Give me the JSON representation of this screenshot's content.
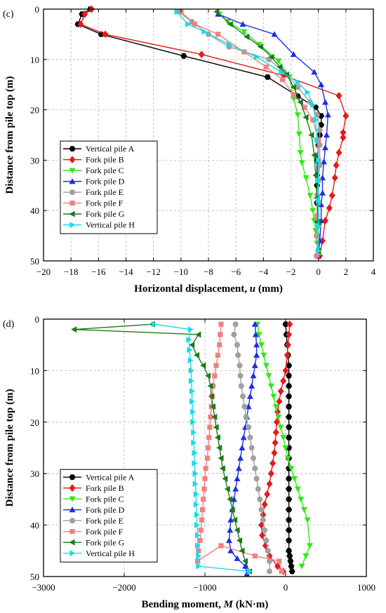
{
  "chart_data": [
    {
      "type": "line",
      "panel_label": "(c)",
      "xlabel_main": "Horizontal displacement, ",
      "xlabel_var": "u",
      "xlabel_unit": " (mm)",
      "ylabel": "Distance from pile top (m)",
      "xlim": [
        -20,
        4
      ],
      "ylim": [
        0,
        50
      ],
      "y_inverted": true,
      "x_axis_position": "bottom",
      "grid": true,
      "legend_position": "lower-left",
      "xticks": [
        -20,
        -18,
        -16,
        -14,
        -12,
        -10,
        -8,
        -6,
        -4,
        -2,
        0,
        2,
        4
      ],
      "yticks": [
        0,
        10,
        20,
        30,
        40,
        50
      ],
      "series": [
        {
          "name": "Vertical pile A",
          "color": "#000000",
          "marker": "hexagon",
          "x": [
            -16.6,
            -17.2,
            -17.5,
            -15.8,
            -9.8,
            -3.7,
            -1.5,
            -0.2,
            0.2,
            0.2,
            0.1,
            0.0,
            -0.1,
            -0.1,
            -0.1,
            -0.1,
            -0.1,
            -0.1,
            -0.1
          ],
          "y": [
            0,
            1,
            3,
            5,
            9.3,
            13.5,
            17.3,
            19.5,
            21.2,
            23,
            25,
            27,
            30,
            33,
            35,
            38.5,
            42,
            45,
            49
          ]
        },
        {
          "name": "Fork pile B",
          "color": "#e41a1c",
          "marker": "diamond",
          "x": [
            -16.5,
            -17.0,
            -17.3,
            -15.5,
            -8.5,
            -2.5,
            1.5,
            2.0,
            1.8,
            1.8,
            1.5,
            1.3,
            1.2,
            1.0,
            0.8,
            0.5,
            0.3,
            0.1
          ],
          "y": [
            0,
            1,
            3,
            5,
            9,
            13.2,
            17.2,
            21.2,
            24.5,
            25.5,
            28.5,
            31,
            33.5,
            37,
            39.5,
            42,
            46,
            49
          ]
        },
        {
          "name": "Fork pile C",
          "color": "#33e61a",
          "marker": "triangle-down",
          "x": [
            -7.2,
            -6.6,
            -5.4,
            -4.3,
            -2.9,
            -2.1,
            -1.8,
            -1.5,
            -1.4,
            -1.3,
            -1.2,
            -0.9,
            -0.6,
            -0.4,
            -0.3,
            -0.2,
            -0.1,
            0.0
          ],
          "y": [
            1,
            2.5,
            4.5,
            7,
            10.3,
            13.5,
            17.8,
            21,
            24.8,
            28.5,
            30.5,
            33.5,
            37,
            40,
            42,
            44,
            46.5,
            49
          ]
        },
        {
          "name": "Fork pile D",
          "color": "#1a2ee6",
          "marker": "triangle-up",
          "x": [
            -7.3,
            -5.5,
            -3.2,
            -1.8,
            -0.3,
            0.2,
            0.5,
            0.7,
            0.6,
            0.5,
            0.4,
            0.3,
            0.3,
            0.2,
            0.2,
            0.1,
            0.0
          ],
          "y": [
            1,
            3,
            5,
            9,
            12.5,
            15,
            18.5,
            21,
            25,
            27.5,
            30.3,
            33.5,
            36.5,
            38.8,
            42,
            46,
            49
          ]
        },
        {
          "name": "Fork pile E",
          "color": "#a0a0a0",
          "marker": "circle",
          "x": [
            -10.2,
            -9.2,
            -8.0,
            -6.5,
            -3.6,
            -2.5,
            -1.5,
            -0.6,
            -0.1,
            0.1,
            0.1,
            0.1,
            0.0,
            0.0,
            0.0,
            0.0
          ],
          "y": [
            0.5,
            2.5,
            5,
            7.5,
            10,
            12.5,
            15.5,
            18.5,
            21,
            24,
            27,
            31,
            34,
            38.5,
            43,
            48
          ]
        },
        {
          "name": "Fork pile F",
          "color": "#f28080",
          "marker": "square",
          "x": [
            -10.0,
            -9.0,
            -7.3,
            -5.4,
            -3.8,
            -2.6,
            -1.8,
            -1.0,
            -0.4,
            0.0,
            0.0,
            0.0,
            -0.1,
            -0.1,
            -0.1,
            -0.1
          ],
          "y": [
            0.5,
            3,
            5,
            8.5,
            11.5,
            14,
            17,
            19.5,
            22,
            26,
            30,
            34,
            37,
            41,
            45,
            49
          ]
        },
        {
          "name": "Fork pile G",
          "color": "#1a7a1a",
          "marker": "triangle-left",
          "x": [
            -7.4,
            -6.4,
            -5.2,
            -4.2,
            -3.4,
            -2.8,
            -2.3,
            -1.8,
            -1.3,
            -0.9,
            -0.5,
            -0.3,
            -0.2,
            -0.1,
            0.0,
            0.0
          ],
          "y": [
            0.5,
            3,
            5.5,
            7.5,
            9.5,
            11.5,
            13,
            15.5,
            18.5,
            21.5,
            25,
            29,
            33,
            37.5,
            42.5,
            48
          ]
        },
        {
          "name": "Vertical pile H",
          "color": "#1ad9e6",
          "marker": "triangle-right",
          "x": [
            -10.3,
            -9.5,
            -8.3,
            -6.5,
            -4.5,
            -2.7,
            -1.5,
            -0.8,
            -0.4,
            -0.2,
            -0.1,
            0.0,
            0.0,
            0.0,
            0.0,
            0.0
          ],
          "y": [
            0.5,
            3,
            4.5,
            7,
            9.5,
            12.5,
            14.5,
            16.5,
            19,
            22,
            26,
            30,
            34,
            38,
            43,
            48
          ]
        }
      ]
    },
    {
      "type": "line",
      "panel_label": "(d)",
      "xlabel_main": "Bending moment, ",
      "xlabel_var": "M",
      "xlabel_unit": " (kN·m)",
      "ylabel": "Distance from pile top (m)",
      "xlim": [
        -3000,
        1000
      ],
      "ylim": [
        0,
        50
      ],
      "y_inverted": true,
      "x_axis_position": "bottom",
      "grid": true,
      "legend_position": "lower-left",
      "xticks": [
        -3000,
        -2000,
        -1000,
        0,
        1000
      ],
      "yticks": [
        0,
        10,
        20,
        30,
        40,
        50
      ],
      "series": [
        {
          "name": "Vertical pile A",
          "color": "#000000",
          "marker": "hexagon",
          "x": [
            0,
            10,
            20,
            30,
            40,
            40,
            40,
            40,
            40,
            40,
            40,
            40,
            40,
            40,
            40,
            40,
            40,
            40,
            40,
            40,
            40,
            40,
            40,
            50,
            60,
            70,
            80
          ],
          "y": [
            1,
            3,
            5,
            7,
            9,
            11,
            13,
            15,
            17,
            19,
            21,
            23,
            25,
            27,
            29,
            31,
            33,
            35,
            37,
            39,
            41,
            43,
            45,
            46,
            47,
            48,
            49
          ]
        },
        {
          "name": "Fork pile B",
          "color": "#e41a1c",
          "marker": "diamond",
          "x": [
            50,
            40,
            30,
            20,
            0,
            -30,
            -60,
            -80,
            -100,
            -110,
            -120,
            -130,
            -140,
            -160,
            -180,
            -200,
            -230,
            -260,
            -280,
            -300,
            -290,
            -250,
            -200,
            -100,
            -30
          ],
          "y": [
            1,
            3,
            5,
            7,
            10,
            12,
            14,
            16,
            18,
            20,
            22,
            24,
            26,
            28,
            30,
            32,
            34,
            36,
            38,
            40,
            42,
            44,
            46,
            48,
            49
          ]
        },
        {
          "name": "Fork pile C",
          "color": "#33e61a",
          "marker": "triangle-down",
          "x": [
            -350,
            -330,
            -300,
            -270,
            -240,
            -210,
            -180,
            -150,
            -120,
            -90,
            -60,
            -30,
            0,
            30,
            70,
            110,
            150,
            190,
            230,
            270,
            300,
            250,
            200
          ],
          "y": [
            1,
            3,
            5,
            7,
            9,
            11,
            13,
            15,
            17,
            19,
            21,
            23,
            25,
            27,
            29,
            31,
            33,
            35,
            37,
            39,
            44,
            46,
            48
          ]
        },
        {
          "name": "Fork pile D",
          "color": "#1a2ee6",
          "marker": "triangle-up",
          "x": [
            -380,
            -370,
            -360,
            -360,
            -380,
            -400,
            -420,
            -440,
            -460,
            -480,
            -500,
            -520,
            -540,
            -560,
            -580,
            -600,
            -620,
            -640,
            -660,
            -680,
            -690,
            -700,
            -680,
            -600,
            -500,
            -480
          ],
          "y": [
            1,
            3,
            5,
            7,
            9,
            11,
            13,
            15,
            17,
            19,
            21,
            23,
            25,
            27,
            29,
            31,
            33,
            35,
            37,
            39,
            41,
            43,
            45,
            46.5,
            48,
            49.5
          ]
        },
        {
          "name": "Fork pile E",
          "color": "#a0a0a0",
          "marker": "circle",
          "x": [
            -620,
            -640,
            -600,
            -590,
            -570,
            -560,
            -550,
            -530,
            -510,
            -490,
            -460,
            -440,
            -420,
            -400,
            -380,
            -360,
            -340,
            -320,
            -300,
            -280,
            -260,
            -240,
            -220,
            -200,
            -200
          ],
          "y": [
            1,
            3,
            5,
            7,
            9,
            11,
            13,
            15,
            17,
            19,
            21,
            23,
            25,
            27,
            29,
            31,
            33,
            35,
            37,
            39,
            41,
            43,
            45,
            47,
            49
          ]
        },
        {
          "name": "Fork pile F",
          "color": "#f28080",
          "marker": "square",
          "x": [
            -800,
            -810,
            -820,
            -840,
            -860,
            -880,
            -900,
            -910,
            -920,
            -930,
            -940,
            -950,
            -960,
            -970,
            -990,
            -1000,
            -1010,
            -1020,
            -1030,
            -1040,
            -1050,
            -1060,
            -1080,
            -1090,
            -800,
            -380,
            -80,
            -50
          ],
          "y": [
            1,
            3,
            5,
            7,
            9,
            11,
            13,
            15,
            17,
            19,
            21,
            23,
            25,
            27,
            29,
            31,
            33,
            35,
            37,
            39,
            41,
            43,
            45,
            47,
            44,
            46,
            47,
            49
          ]
        },
        {
          "name": "Fork pile G",
          "color": "#1a7a1a",
          "marker": "triangle-left",
          "x": [
            -1650,
            -2620,
            -1080,
            -1160,
            -1100,
            -1020,
            -960,
            -930,
            -920,
            -900,
            -880,
            -860,
            -840,
            -820,
            -800,
            -780,
            -750,
            -720,
            -690,
            -660,
            -630,
            -600,
            -570,
            -540,
            -500,
            -450
          ],
          "y": [
            1,
            2,
            3,
            5,
            7,
            9,
            11,
            13,
            15,
            17,
            19,
            21,
            23,
            25,
            27,
            29,
            31,
            33,
            35,
            37,
            39,
            41,
            43,
            45,
            47,
            49
          ]
        },
        {
          "name": "Vertical pile H",
          "color": "#1ad9e6",
          "marker": "triangle-right",
          "x": [
            -1630,
            -1180,
            -1200,
            -1190,
            -1180,
            -1170,
            -1170,
            -1160,
            -1160,
            -1150,
            -1150,
            -1140,
            -1140,
            -1130,
            -1130,
            -1120,
            -1120,
            -1110,
            -1110,
            -1100,
            -1100,
            -1090,
            -1090,
            -1080,
            -1080,
            -450
          ],
          "y": [
            1,
            2,
            4,
            6,
            8,
            10,
            12,
            14,
            16,
            18,
            20,
            22,
            24,
            26,
            28,
            30,
            32,
            34,
            36,
            38,
            40,
            42,
            44,
            46,
            48,
            49
          ]
        }
      ]
    }
  ]
}
